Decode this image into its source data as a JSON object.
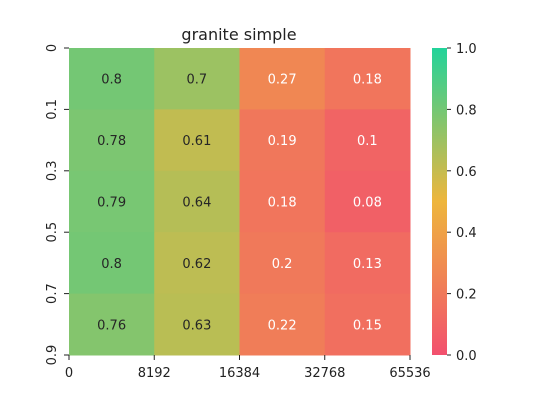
{
  "chart_data": {
    "type": "heatmap",
    "title": "granite simple",
    "xlabel": "",
    "ylabel": "",
    "x_tick_labels": [
      "0",
      "8192",
      "16384",
      "32768",
      "65536"
    ],
    "y_tick_labels": [
      "0",
      "0.1",
      "0.3",
      "0.5",
      "0.7",
      "0.9"
    ],
    "values": [
      [
        0.8,
        0.7,
        0.27,
        0.18
      ],
      [
        0.78,
        0.61,
        0.19,
        0.1
      ],
      [
        0.79,
        0.64,
        0.18,
        0.08
      ],
      [
        0.8,
        0.62,
        0.2,
        0.13
      ],
      [
        0.76,
        0.63,
        0.22,
        0.15
      ]
    ],
    "value_labels": [
      [
        "0.8",
        "0.7",
        "0.27",
        "0.18"
      ],
      [
        "0.78",
        "0.61",
        "0.19",
        "0.1"
      ],
      [
        "0.79",
        "0.64",
        "0.18",
        "0.08"
      ],
      [
        "0.8",
        "0.62",
        "0.2",
        "0.13"
      ],
      [
        "0.76",
        "0.63",
        "0.22",
        "0.15"
      ]
    ],
    "color_range": [
      0.0,
      1.0
    ],
    "colorbar_ticks": [
      "0.0",
      "0.2",
      "0.4",
      "0.6",
      "0.8",
      "1.0"
    ],
    "colormap": [
      "#f2506e",
      "#eeb63c",
      "#22d39a"
    ],
    "legend": "colorbar-right"
  }
}
